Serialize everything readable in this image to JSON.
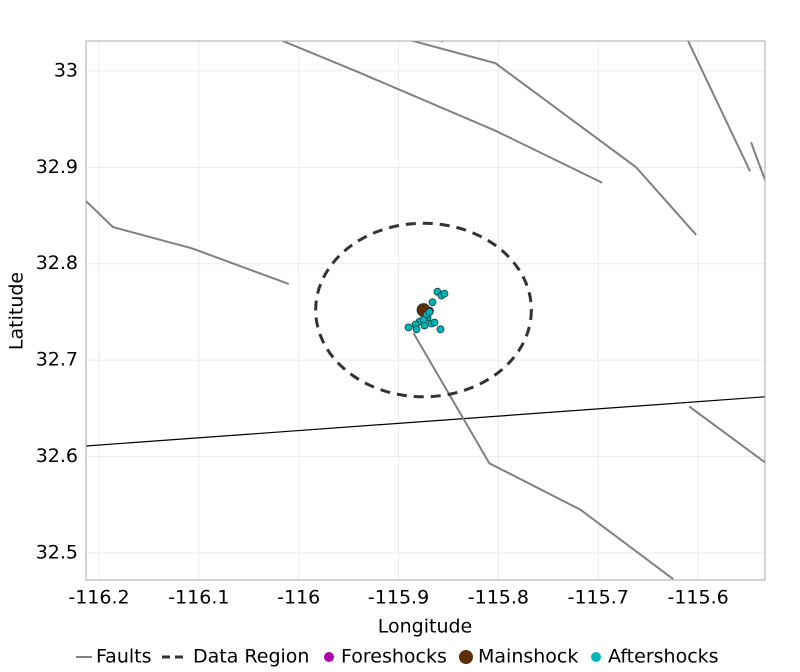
{
  "chart_data": {
    "type": "scatter",
    "xlabel": "Longitude",
    "ylabel": "Latitude",
    "xlim": [
      -116.213,
      -115.533
    ],
    "ylim": [
      32.472,
      33.031
    ],
    "xticks": [
      -116.2,
      -116.1,
      -116,
      -115.9,
      -115.8,
      -115.7,
      -115.6
    ],
    "yticks": [
      32.5,
      32.6,
      32.7,
      32.8,
      32.9,
      33
    ],
    "grid": true,
    "border": {
      "color": "#000000",
      "x": [
        -116.213,
        -115.533
      ],
      "y": [
        32.611,
        32.662
      ]
    },
    "series": [
      {
        "name": "Faults",
        "kind": "line",
        "color": "#808080",
        "x": [
          -116.016,
          -115.941,
          -115.803,
          -115.696,
          null,
          -115.889,
          -115.803,
          -115.662,
          -115.602,
          null,
          -115.857,
          -115.853,
          null,
          -115.61,
          -115.548,
          null,
          -115.547,
          -115.533,
          null,
          -116.213,
          -116.186,
          -116.107,
          -116.01,
          null,
          -115.885,
          -115.809,
          -115.718,
          -115.625,
          null,
          -115.609,
          -115.533
        ],
        "y": [
          33.031,
          32.999,
          32.938,
          32.884,
          null,
          33.032,
          33.008,
          32.9,
          32.83,
          null,
          33.03,
          33.034,
          null,
          33.031,
          32.896,
          null,
          32.926,
          32.887,
          null,
          32.865,
          32.838,
          32.816,
          32.779,
          null,
          32.728,
          32.593,
          32.545,
          32.473,
          null,
          32.652,
          32.594
        ]
      },
      {
        "name": "Data Region",
        "kind": "ellipse",
        "color": "#333333",
        "x": [
          -115.875
        ],
        "y": [
          32.752
        ],
        "rx": 0.108,
        "ry": 0.09
      },
      {
        "name": "Foreshocks",
        "kind": "point",
        "color": "#b000b0",
        "x": [
          -115.869
        ],
        "y": [
          32.751
        ]
      },
      {
        "name": "Mainshock",
        "kind": "point",
        "color": "#5c2e0a",
        "x": [
          -115.875
        ],
        "y": [
          32.752
        ]
      },
      {
        "name": "Aftershocks",
        "kind": "point",
        "color": "#00b5b5",
        "x": [
          -115.861,
          -115.857,
          -115.854,
          -115.866,
          -115.871,
          -115.879,
          -115.883,
          -115.874,
          -115.867,
          -115.864,
          -115.89,
          -115.882,
          -115.858,
          -115.872,
          -115.875,
          -115.869
        ],
        "y": [
          32.771,
          32.767,
          32.769,
          32.76,
          32.744,
          32.74,
          32.737,
          32.736,
          32.738,
          32.739,
          32.734,
          32.732,
          32.732,
          32.747,
          32.742,
          32.75
        ]
      }
    ]
  }
}
